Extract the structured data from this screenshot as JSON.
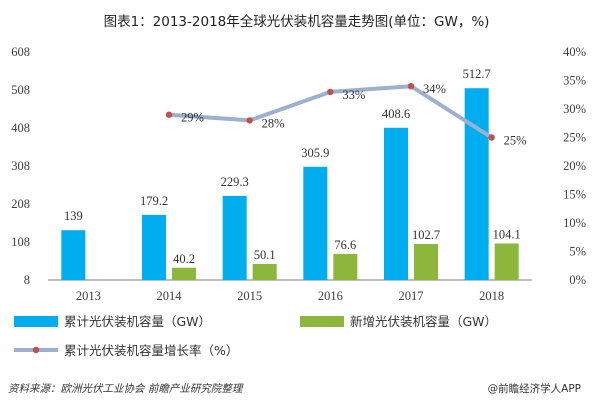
{
  "chart_data": {
    "type": "bar+line",
    "title": "图表1：2013-2018年全球光伏装机容量走势图(单位：GW，%)",
    "categories": [
      "2013",
      "2014",
      "2015",
      "2016",
      "2017",
      "2018"
    ],
    "series": [
      {
        "name": "累计光伏装机容量（GW）",
        "kind": "bar",
        "axis": "left",
        "color": "#00AEEF",
        "values": [
          139,
          179.2,
          229.3,
          305.9,
          408.6,
          512.7
        ],
        "labels": [
          "139",
          "179.2",
          "229.3",
          "305.9",
          "408.6",
          "512.7"
        ]
      },
      {
        "name": "新增光伏装机容量（GW）",
        "kind": "bar",
        "axis": "left",
        "color": "#8DB63C",
        "values": [
          null,
          40.2,
          50.1,
          76.6,
          102.7,
          104.1
        ],
        "labels": [
          "",
          "40.2",
          "50.1",
          "76.6",
          "102.7",
          "104.1"
        ]
      },
      {
        "name": "累计光伏装机容量增长率（%）",
        "kind": "line",
        "axis": "right",
        "color": "#9DB0CF",
        "marker_color": "#C0504D",
        "values": [
          null,
          29,
          28,
          33,
          34,
          25
        ],
        "labels": [
          "",
          "29%",
          "28%",
          "33%",
          "34%",
          "25%"
        ]
      }
    ],
    "y_left": {
      "ylim": [
        8,
        608
      ],
      "ticks": [
        "8",
        "108",
        "208",
        "308",
        "408",
        "508",
        "608"
      ]
    },
    "y_right": {
      "ylim": [
        0,
        40
      ],
      "ticks": [
        "0%",
        "5%",
        "10%",
        "15%",
        "20%",
        "25%",
        "30%",
        "35%",
        "40%"
      ]
    },
    "grid": false,
    "legend_position": "bottom"
  },
  "footer": {
    "source": "资料来源：欧洲光伏工业协会 前瞻产业研究院整理",
    "brand": "@前瞻经济学人APP"
  }
}
